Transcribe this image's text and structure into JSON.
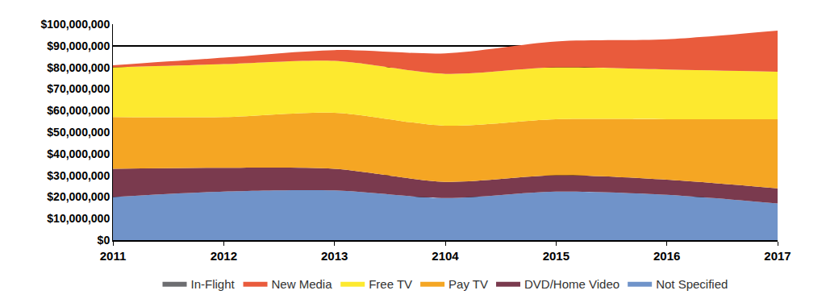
{
  "chart_data": {
    "type": "area",
    "stacked": true,
    "grid": true,
    "legend": "bottom",
    "categories": [
      "2011",
      "2012",
      "2013",
      "2104",
      "2015",
      "2016",
      "2017"
    ],
    "series": [
      {
        "name": "Not Specified",
        "color": "#7093c9",
        "values": [
          20000000,
          22500000,
          23000000,
          19500000,
          22500000,
          21000000,
          17000000
        ]
      },
      {
        "name": "DVD/Home Video",
        "color": "#7a3a4e",
        "values": [
          13000000,
          11000000,
          10000000,
          7500000,
          7500000,
          7000000,
          7000000
        ]
      },
      {
        "name": "Pay TV",
        "color": "#f5a623",
        "values": [
          24000000,
          23500000,
          26000000,
          26000000,
          26000000,
          28000000,
          32000000
        ]
      },
      {
        "name": "Free TV",
        "color": "#fde92f",
        "values": [
          23000000,
          24500000,
          24000000,
          24000000,
          24000000,
          23000000,
          22000000
        ]
      },
      {
        "name": "New Media",
        "color": "#e95b3c",
        "values": [
          1000000,
          3000000,
          5000000,
          9500000,
          12000000,
          14000000,
          19000000
        ]
      },
      {
        "name": "In-Flight",
        "color": "#6d6e71",
        "values": [
          0,
          0,
          0,
          0,
          0,
          0,
          0
        ]
      }
    ],
    "ylim": [
      0,
      100000000
    ],
    "yticks": [
      {
        "value": 0,
        "label": "$0"
      },
      {
        "value": 10000000,
        "label": "$10,000,000"
      },
      {
        "value": 20000000,
        "label": "$20,000,000"
      },
      {
        "value": 30000000,
        "label": "$30,000,000"
      },
      {
        "value": 40000000,
        "label": "$40,000,000"
      },
      {
        "value": 50000000,
        "label": "$50,000,000"
      },
      {
        "value": 60000000,
        "label": "$60,000,000"
      },
      {
        "value": 70000000,
        "label": "$70,000,000"
      },
      {
        "value": 80000000,
        "label": "$80,000,000"
      },
      {
        "value": 90000000,
        "label": "$90,000,000"
      },
      {
        "value": 100000000,
        "label": "$100,000,000"
      }
    ]
  }
}
